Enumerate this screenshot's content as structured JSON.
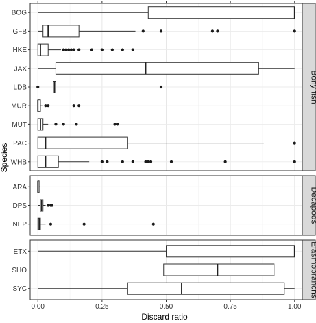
{
  "chart_data": {
    "type": "boxplot",
    "xlabel": "Discard ratio",
    "ylabel": "Species",
    "xlim": [
      -0.03,
      1.03
    ],
    "x_ticks": [
      "0.00",
      "0.25",
      "0.50",
      "0.75",
      "1.00"
    ],
    "x_tick_values": [
      0,
      0.25,
      0.5,
      0.75,
      1.0
    ],
    "grid": true,
    "panels": [
      {
        "facet": "Bony fish",
        "categories": [
          {
            "name": "BOG",
            "min": 0.0,
            "q1": 0.43,
            "median": 1.0,
            "q3": 1.0,
            "max": 1.0,
            "outliers": []
          },
          {
            "name": "GFB",
            "min": 0.0,
            "q1": 0.02,
            "median": 0.04,
            "q3": 0.16,
            "max": 0.38,
            "outliers": [
              0.41,
              0.48,
              0.68,
              0.7,
              1.0
            ]
          },
          {
            "name": "HKE",
            "min": 0.0,
            "q1": 0.0,
            "median": 0.01,
            "q3": 0.04,
            "max": 0.09,
            "outliers": [
              0.1,
              0.11,
              0.12,
              0.13,
              0.14,
              0.16,
              0.21,
              0.25,
              0.29,
              0.33,
              0.37
            ]
          },
          {
            "name": "JAX",
            "min": 0.0,
            "q1": 0.07,
            "median": 0.42,
            "q3": 0.86,
            "max": 1.0,
            "outliers": []
          },
          {
            "name": "LDB",
            "min": 0.06,
            "q1": 0.06,
            "median": 0.065,
            "q3": 0.07,
            "max": 0.07,
            "outliers": [
              0.0,
              0.48
            ]
          },
          {
            "name": "MUR",
            "min": 0.0,
            "q1": 0.0,
            "median": 0.0,
            "q3": 0.01,
            "max": 0.02,
            "outliers": [
              0.03,
              0.04,
              0.14,
              0.16
            ]
          },
          {
            "name": "MUT",
            "min": 0.0,
            "q1": 0.0,
            "median": 0.01,
            "q3": 0.02,
            "max": 0.04,
            "outliers": [
              0.07,
              0.1,
              0.15,
              0.3,
              0.31
            ]
          },
          {
            "name": "PAC",
            "min": 0.0,
            "q1": 0.0,
            "median": 0.03,
            "q3": 0.35,
            "max": 0.88,
            "outliers": [
              1.0
            ]
          },
          {
            "name": "WHB",
            "min": 0.0,
            "q1": 0.0,
            "median": 0.03,
            "q3": 0.08,
            "max": 0.2,
            "outliers": [
              0.25,
              0.27,
              0.33,
              0.37,
              0.42,
              0.43,
              0.44,
              0.52,
              0.73,
              1.0
            ]
          }
        ]
      },
      {
        "facet": "Decapods",
        "categories": [
          {
            "name": "ARA",
            "min": 0.0,
            "q1": 0.0,
            "median": 0.0,
            "q3": 0.005,
            "max": 0.01,
            "outliers": []
          },
          {
            "name": "DPS",
            "min": 0.0,
            "q1": 0.01,
            "median": 0.015,
            "q3": 0.02,
            "max": 0.03,
            "outliers": [
              0.04,
              0.05,
              0.055
            ]
          },
          {
            "name": "NEP",
            "min": 0.0,
            "q1": 0.0,
            "median": 0.005,
            "q3": 0.01,
            "max": 0.03,
            "outliers": [
              0.05,
              0.18,
              0.45
            ]
          }
        ]
      },
      {
        "facet": "Elasmobranchs",
        "categories": [
          {
            "name": "ETX",
            "min": 0.0,
            "q1": 0.5,
            "median": 1.0,
            "q3": 1.0,
            "max": 1.0,
            "outliers": []
          },
          {
            "name": "SHO",
            "min": 0.05,
            "q1": 0.49,
            "median": 0.7,
            "q3": 0.92,
            "max": 1.0,
            "outliers": []
          },
          {
            "name": "SYC",
            "min": 0.0,
            "q1": 0.35,
            "median": 0.56,
            "q3": 0.96,
            "max": 1.0,
            "outliers": []
          }
        ]
      }
    ]
  }
}
